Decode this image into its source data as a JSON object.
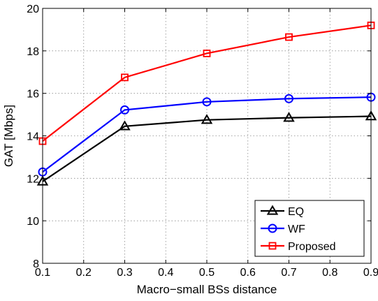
{
  "chart_data": {
    "type": "line",
    "xlabel": "Macro−small BSs distance",
    "ylabel": "GAT [Mbps]",
    "x": [
      0.1,
      0.3,
      0.5,
      0.7,
      0.9
    ],
    "xlim": [
      0.1,
      0.9
    ],
    "ylim": [
      8,
      20
    ],
    "xticks": [
      0.1,
      0.2,
      0.3,
      0.4,
      0.5,
      0.6,
      0.7,
      0.8,
      0.9
    ],
    "xtick_labels": [
      "0.1",
      "0.2",
      "0.3",
      "0.4",
      "0.5",
      "0.6",
      "0.7",
      "0.8",
      "0.9"
    ],
    "yticks": [
      8,
      10,
      12,
      14,
      16,
      18,
      20
    ],
    "ytick_labels": [
      "8",
      "10",
      "12",
      "14",
      "16",
      "18",
      "20"
    ],
    "grid": true,
    "legend_position": "bottom-right",
    "series": [
      {
        "name": "EQ",
        "color": "#000000",
        "marker": "triangle",
        "values": [
          11.85,
          14.45,
          14.75,
          14.85,
          14.92
        ]
      },
      {
        "name": "WF",
        "color": "#0000ff",
        "marker": "circle",
        "values": [
          12.3,
          15.22,
          15.6,
          15.75,
          15.82
        ]
      },
      {
        "name": "Proposed",
        "color": "#ff0000",
        "marker": "square",
        "values": [
          13.75,
          16.75,
          17.88,
          18.65,
          19.2
        ]
      }
    ]
  }
}
